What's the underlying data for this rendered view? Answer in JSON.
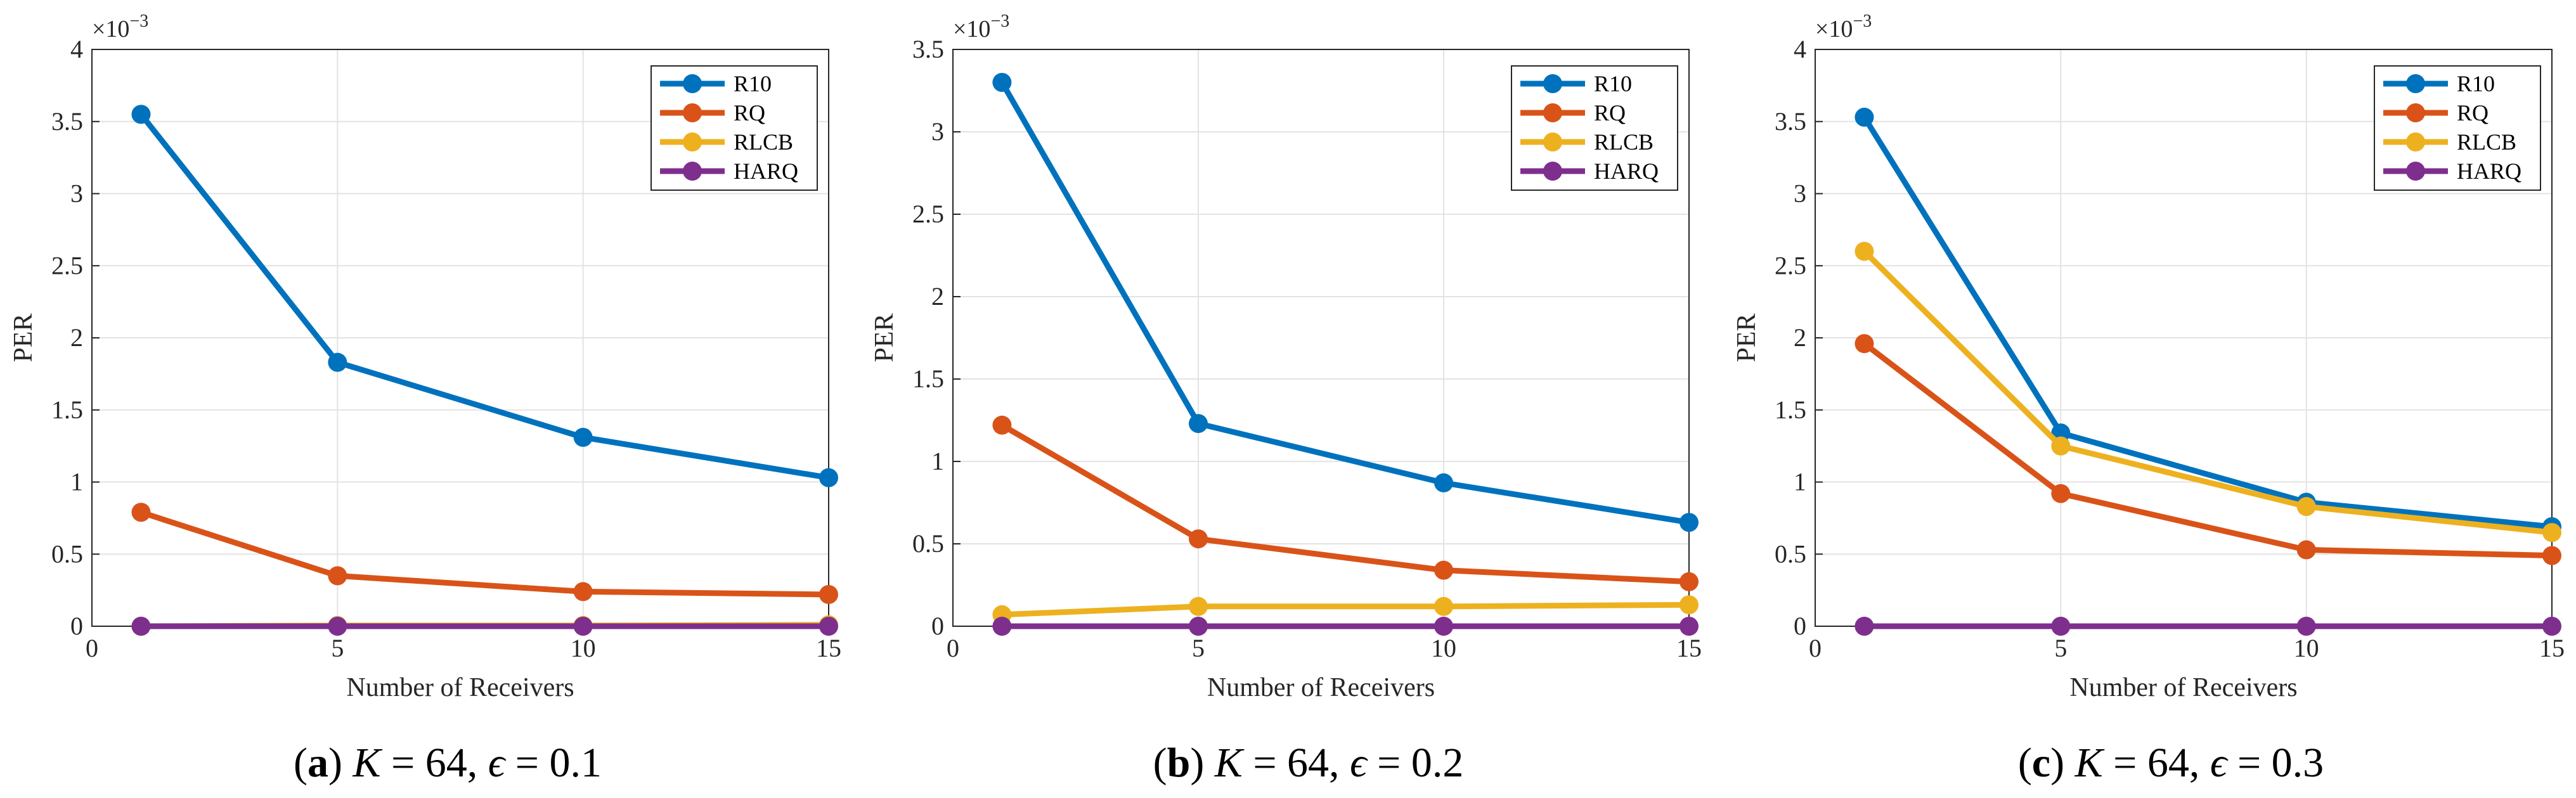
{
  "chart_data": [
    {
      "type": "line",
      "panel_label": "a",
      "caption_parts": [
        "K",
        " = 64, ",
        "ϵ",
        " = 0.1"
      ],
      "xlabel": "Number of Receivers",
      "ylabel": "PER",
      "multiplier": "×10",
      "multiplier_exp": "−3",
      "xlim": [
        0,
        15
      ],
      "ylim": [
        0,
        4
      ],
      "xticks": [
        0,
        5,
        10,
        15
      ],
      "xtick_labels": [
        "0",
        "5",
        "10",
        "15"
      ],
      "yticks": [
        0,
        0.5,
        1,
        1.5,
        2,
        2.5,
        3,
        3.5,
        4
      ],
      "ytick_labels": [
        "0",
        "0.5",
        "1",
        "1.5",
        "2",
        "2.5",
        "3",
        "3.5",
        "4"
      ],
      "grid": true,
      "legend_position": "top-right",
      "x": [
        1,
        5,
        10,
        15
      ],
      "series": [
        {
          "name": "R10",
          "color": "#0072BD",
          "values": [
            3.55,
            1.83,
            1.31,
            1.03
          ]
        },
        {
          "name": "RQ",
          "color": "#D95319",
          "values": [
            0.79,
            0.35,
            0.24,
            0.22
          ]
        },
        {
          "name": "RLCB",
          "color": "#EDB120",
          "values": [
            0.0,
            0.005,
            0.005,
            0.01
          ]
        },
        {
          "name": "HARQ",
          "color": "#7E2F8E",
          "values": [
            0,
            0,
            0,
            0
          ]
        }
      ]
    },
    {
      "type": "line",
      "panel_label": "b",
      "caption_parts": [
        "K",
        " = 64, ",
        "ϵ",
        " = 0.2"
      ],
      "xlabel": "Number of Receivers",
      "ylabel": "PER",
      "multiplier": "×10",
      "multiplier_exp": "−3",
      "xlim": [
        0,
        15
      ],
      "ylim": [
        0,
        3.5
      ],
      "xticks": [
        0,
        5,
        10,
        15
      ],
      "xtick_labels": [
        "0",
        "5",
        "10",
        "15"
      ],
      "yticks": [
        0,
        0.5,
        1,
        1.5,
        2,
        2.5,
        3,
        3.5
      ],
      "ytick_labels": [
        "0",
        "0.5",
        "1",
        "1.5",
        "2",
        "2.5",
        "3",
        "3.5"
      ],
      "grid": true,
      "legend_position": "top-right",
      "x": [
        1,
        5,
        10,
        15
      ],
      "series": [
        {
          "name": "R10",
          "color": "#0072BD",
          "values": [
            3.3,
            1.23,
            0.87,
            0.63
          ]
        },
        {
          "name": "RQ",
          "color": "#D95319",
          "values": [
            1.22,
            0.53,
            0.34,
            0.27
          ]
        },
        {
          "name": "RLCB",
          "color": "#EDB120",
          "values": [
            0.07,
            0.12,
            0.12,
            0.13
          ]
        },
        {
          "name": "HARQ",
          "color": "#7E2F8E",
          "values": [
            0,
            0,
            0,
            0
          ]
        }
      ]
    },
    {
      "type": "line",
      "panel_label": "c",
      "caption_parts": [
        "K",
        " = 64, ",
        "ϵ",
        " = 0.3"
      ],
      "xlabel": "Number of Receivers",
      "ylabel": "PER",
      "multiplier": "×10",
      "multiplier_exp": "−3",
      "xlim": [
        0,
        15
      ],
      "ylim": [
        0,
        4
      ],
      "xticks": [
        0,
        5,
        10,
        15
      ],
      "xtick_labels": [
        "0",
        "5",
        "10",
        "15"
      ],
      "yticks": [
        0,
        0.5,
        1,
        1.5,
        2,
        2.5,
        3,
        3.5,
        4
      ],
      "ytick_labels": [
        "0",
        "0.5",
        "1",
        "1.5",
        "2",
        "2.5",
        "3",
        "3.5",
        "4"
      ],
      "grid": true,
      "legend_position": "top-right",
      "x": [
        1,
        5,
        10,
        15
      ],
      "series": [
        {
          "name": "R10",
          "color": "#0072BD",
          "values": [
            3.53,
            1.34,
            0.86,
            0.69
          ]
        },
        {
          "name": "RQ",
          "color": "#D95319",
          "values": [
            1.96,
            0.92,
            0.53,
            0.49
          ]
        },
        {
          "name": "RLCB",
          "color": "#EDB120",
          "values": [
            2.6,
            1.25,
            0.83,
            0.65
          ]
        },
        {
          "name": "HARQ",
          "color": "#7E2F8E",
          "values": [
            0,
            0,
            0,
            0
          ]
        }
      ]
    }
  ]
}
